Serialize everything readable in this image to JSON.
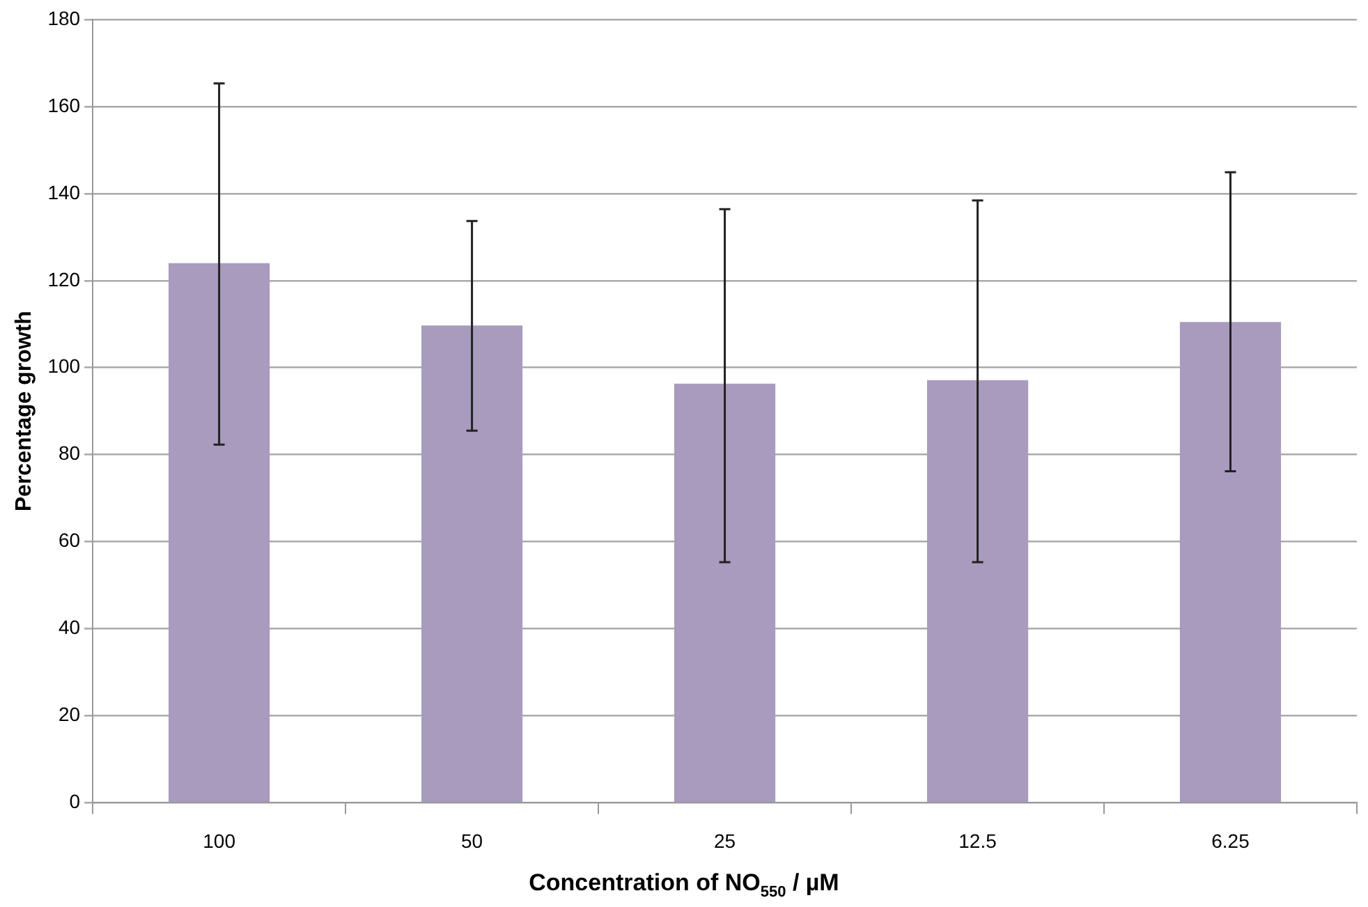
{
  "chart_data": {
    "type": "bar",
    "xlabel": "Concentration of NO$_{550}$ / µM",
    "ylabel": "Percentage growth",
    "categories": [
      "100",
      "50",
      "25",
      "12.5",
      "6.25"
    ],
    "values": [
      124,
      109.7,
      96.3,
      97.1,
      110.5
    ],
    "errors": [
      [
        82.3,
        165.3
      ],
      [
        85.5,
        133.7
      ],
      [
        55.3,
        136.4
      ],
      [
        55.3,
        138.4
      ],
      [
        76.2,
        144.9
      ]
    ],
    "color": "#a89bbe",
    "ylim": [
      0,
      180
    ],
    "yticks": [
      0,
      20,
      40,
      60,
      80,
      100,
      120,
      140,
      160,
      180
    ],
    "grid": "y",
    "legend": false
  }
}
